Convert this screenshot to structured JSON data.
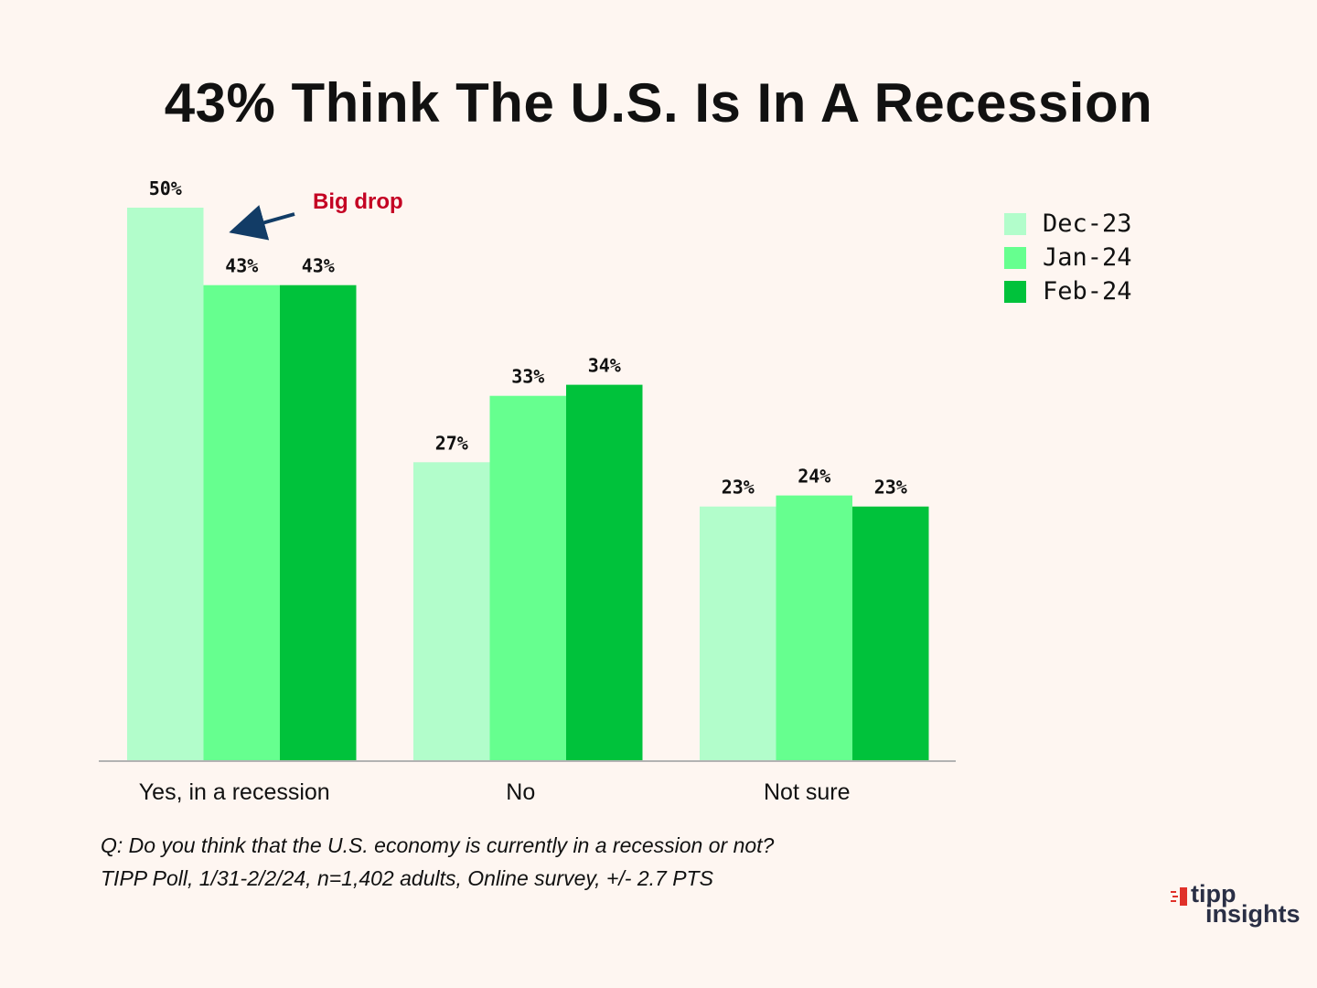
{
  "colors": {
    "background": "#fef6f1",
    "series": [
      "#b2fdcb",
      "#66ff8f",
      "#00c23b"
    ],
    "axis": "#b3b3b3",
    "annotation_text": "#c40023",
    "annotation_arrow": "#123c66",
    "logo_accent": "#e0312a",
    "logo_text": "#2a2f45"
  },
  "chart_data": {
    "type": "bar",
    "title": "43% Think The U.S. Is In A Recession",
    "categories": [
      "Yes, in a recession",
      "No",
      "Not sure"
    ],
    "series": [
      {
        "name": "Dec-23",
        "values": [
          50,
          27,
          23
        ],
        "labels": [
          "50%",
          "27%",
          "23%"
        ]
      },
      {
        "name": "Jan-24",
        "values": [
          43,
          33,
          24
        ],
        "labels": [
          "43%",
          "33%",
          "24%"
        ]
      },
      {
        "name": "Feb-24",
        "values": [
          43,
          34,
          23
        ],
        "labels": [
          "43%",
          "34%",
          "23%"
        ]
      }
    ],
    "xlabel": "",
    "ylabel": "",
    "ylim": [
      0,
      50
    ],
    "grid": false,
    "legend_position": "top-right",
    "annotation": {
      "text": "Big drop",
      "points_to": "Jan-24 bar of Yes, in a recession"
    }
  },
  "footnote": {
    "question": "Q:  Do you think that the U.S. economy is currently in a recession or not?",
    "source": "TIPP Poll, 1/31-2/2/24, n=1,402 adults, Online survey, +/- 2.7 PTS"
  },
  "logo": {
    "line1": "tipp",
    "line2": "insights"
  }
}
